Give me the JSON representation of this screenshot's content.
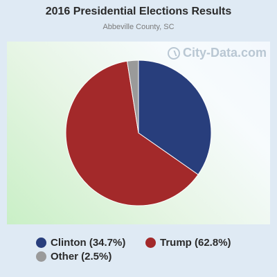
{
  "header": {
    "title": "2016 Presidential Elections Results",
    "subtitle": "Abbeville County, SC"
  },
  "watermark": {
    "text": "City-Data.com",
    "icon": "city-data-logo-icon"
  },
  "chart_data": {
    "type": "pie",
    "title": "2016 Presidential Elections Results",
    "subtitle": "Abbeville County, SC",
    "legend_position": "bottom",
    "slices": [
      {
        "name": "Clinton",
        "label": "Clinton (34.7%)",
        "value": 34.7,
        "color": "#283e7c"
      },
      {
        "name": "Trump",
        "label": "Trump (62.8%)",
        "value": 62.8,
        "color": "#a3292a"
      },
      {
        "name": "Other",
        "label": "Other (2.5%)",
        "value": 2.5,
        "color": "#9a9a9a"
      }
    ]
  }
}
